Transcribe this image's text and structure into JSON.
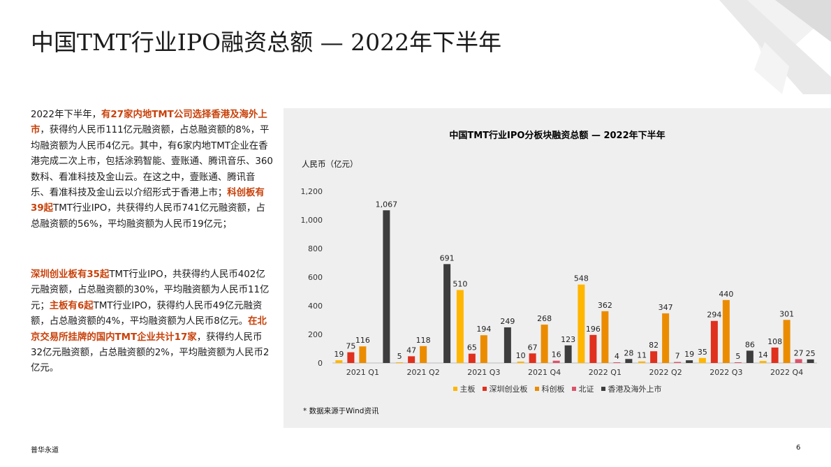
{
  "slide": {
    "title": "中国TMT行业IPO融资总额 — 2022年下半年",
    "footer": "普华永道",
    "page_number": "6"
  },
  "text": {
    "p1": [
      {
        "t": "2022年下半年，",
        "hl": false
      },
      {
        "t": "有27家内地TMT公司选择香港及海外上市",
        "hl": true
      },
      {
        "t": "，获得约人民币111亿元融资额，占总融资额的8%，平均融资额为人民币4亿元。其中，有6家内地TMT企业在香港完成二次上市，包括涂鸦智能、壹账通、腾讯音乐、360数科、看准科技及金山云。在这之中，壹账通、腾讯音乐、看准科技及金山云以介绍形式于香港上市；",
        "hl": false
      },
      {
        "t": "科创板有39起",
        "hl": true
      },
      {
        "t": "TMT行业IPO，共获得约人民币741亿元融资额，占总融资额的56%，平均融资额为人民币19亿元；",
        "hl": false
      }
    ],
    "p2": [
      {
        "t": "深圳创业板有35起",
        "hl": true
      },
      {
        "t": "TMT行业IPO，共获得约人民币402亿元融资额，占总融资额的30%，平均融资额为人民币11亿元；",
        "hl": false
      },
      {
        "t": "主板有6起",
        "hl": true
      },
      {
        "t": "TMT行业IPO，获得约人民币49亿元融资额，占总融资额的4%，平均融资额为人民币8亿元。",
        "hl": false
      },
      {
        "t": "在北京交易所挂牌的国内TMT企业共计17家",
        "hl": true
      },
      {
        "t": "，获得约人民币32亿元融资额，占总融资额的2%，平均融资额为人民币2亿元。",
        "hl": false
      }
    ]
  },
  "chart_data": {
    "type": "bar",
    "title": "中国TMT行业IPO分板块融资总额 — 2022年下半年",
    "ylabel": "人民币（亿元）",
    "ylim": [
      0,
      1200
    ],
    "yticks": [
      0,
      200,
      400,
      600,
      800,
      1000,
      1200
    ],
    "ytick_labels": [
      "0",
      "200",
      "400",
      "600",
      "800",
      "1,000",
      "1,200"
    ],
    "grid": false,
    "legend_position": "bottom",
    "categories": [
      "2021 Q1",
      "2021 Q2",
      "2021 Q3",
      "2021 Q4",
      "2022 Q1",
      "2022 Q2",
      "2022 Q3",
      "2022 Q4"
    ],
    "series": [
      {
        "name": "主板",
        "color": "#FFB600",
        "values": [
          19,
          5,
          510,
          10,
          548,
          11,
          35,
          14
        ],
        "labels": [
          "19",
          "5",
          "510",
          "10",
          "548",
          "11",
          "35",
          "14"
        ]
      },
      {
        "name": "深圳创业板",
        "color": "#E0301E",
        "values": [
          75,
          47,
          65,
          67,
          196,
          82,
          294,
          108
        ],
        "labels": [
          "75",
          "47",
          "65",
          "67",
          "196",
          "82",
          "294",
          "108"
        ]
      },
      {
        "name": "科创板",
        "color": "#EB8C00",
        "values": [
          116,
          118,
          194,
          268,
          362,
          347,
          440,
          301
        ],
        "labels": [
          "116",
          "118",
          "194",
          "268",
          "362",
          "347",
          "440",
          "301"
        ]
      },
      {
        "name": "北证",
        "color": "#DB536A",
        "values": [
          0,
          0,
          0,
          16,
          4,
          7,
          5,
          27
        ],
        "labels": [
          "",
          "",
          "",
          "16",
          "4",
          "7",
          "5",
          "27"
        ]
      },
      {
        "name": "香港及海外上市",
        "color": "#3D3D3D",
        "values": [
          1067,
          691,
          249,
          123,
          28,
          19,
          86,
          25
        ],
        "labels": [
          "1,067",
          "691",
          "249",
          "123",
          "28",
          "19",
          "86",
          "25"
        ]
      }
    ],
    "note": "* 数据来源于Wind资讯"
  }
}
